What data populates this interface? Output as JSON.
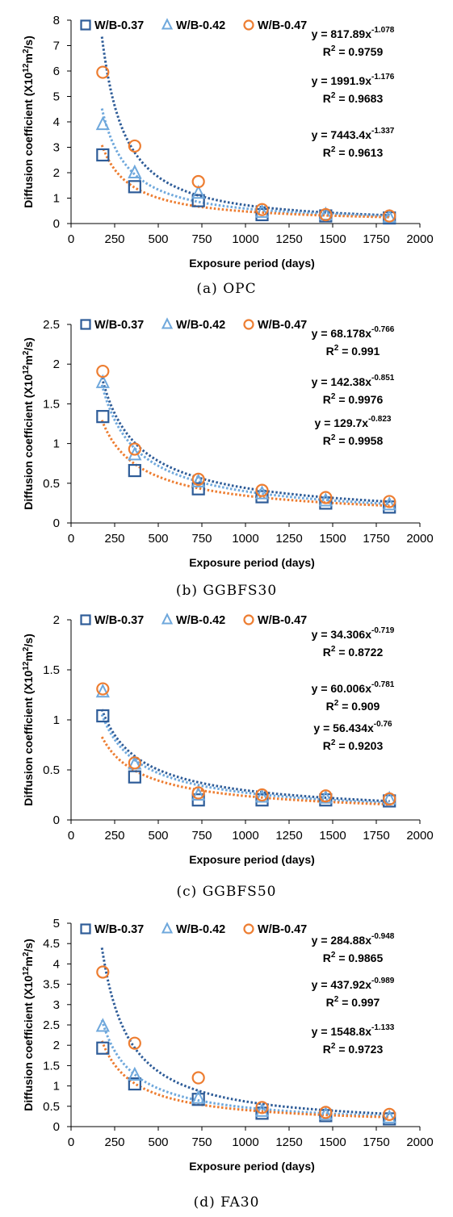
{
  "colors": {
    "series": [
      "#2e5c98",
      "#6fa8dc",
      "#ed7d31"
    ],
    "axis": "#000000"
  },
  "chart_data": [
    {
      "type": "scatter",
      "caption": "(a) OPC",
      "xlabel": "Exposure period (days)",
      "ylabel": "Diffusion coefficient (X10",
      "ylabel_sup": "12",
      "ylabel_mid": "m",
      "ylabel_sup2": "2",
      "ylabel_end": "/s)",
      "xlim": [
        0,
        2000
      ],
      "ylim": [
        0,
        8
      ],
      "xticks": [
        "0",
        "250",
        "500",
        "750",
        "1000",
        "1250",
        "1500",
        "1750",
        "2000"
      ],
      "yticks": [
        "0",
        "1",
        "2",
        "3",
        "4",
        "5",
        "6",
        "7",
        "8"
      ],
      "legend": {
        "placement": "top-left"
      },
      "x": [
        182,
        365,
        730,
        1095,
        1460,
        1825
      ],
      "series": [
        {
          "name": "W/B-0.37",
          "marker": "square",
          "values": [
            2.7,
            1.45,
            0.9,
            0.35,
            0.3,
            0.22
          ],
          "fit": {
            "a": 7443.4,
            "b": -1.337
          }
        },
        {
          "name": "W/B-0.42",
          "marker": "triangle",
          "values": [
            3.9,
            2.0,
            1.2,
            0.45,
            0.35,
            0.25
          ],
          "fit": {
            "a": 1991.9,
            "b": -1.176
          }
        },
        {
          "name": "W/B-0.47",
          "marker": "circle",
          "values": [
            5.95,
            3.05,
            1.65,
            0.55,
            0.35,
            0.3
          ],
          "fit": {
            "a": 817.89,
            "b": -1.078
          }
        }
      ],
      "annotations": [
        {
          "eq_prefix": "y = 817.89x",
          "eq_exp": "-1.078",
          "r2_label": "R",
          "r2_sup": "2",
          "r2_value": " = 0.9759"
        },
        {
          "eq_prefix": "y = 1991.9x",
          "eq_exp": "-1.176",
          "r2_label": "R",
          "r2_sup": "2",
          "r2_value": " = 0.9683"
        },
        {
          "eq_prefix": "y = 7443.4x",
          "eq_exp": "-1.337",
          "r2_label": "R",
          "r2_sup": "2",
          "r2_value": " = 0.9613"
        }
      ]
    },
    {
      "type": "scatter",
      "caption": "(b) GGBFS30",
      "xlabel": "Exposure period (days)",
      "ylabel": "Diffusion coefficient (X10",
      "ylabel_sup": "12",
      "ylabel_mid": "m",
      "ylabel_sup2": "2",
      "ylabel_end": "/s)",
      "xlim": [
        0,
        2000
      ],
      "ylim": [
        0,
        2.5
      ],
      "xticks": [
        "0",
        "250",
        "500",
        "750",
        "1000",
        "1250",
        "1500",
        "1750",
        "2000"
      ],
      "yticks": [
        "0",
        "0.5",
        "1",
        "1.5",
        "2",
        "2.5"
      ],
      "legend": {
        "placement": "top-left"
      },
      "x": [
        182,
        365,
        730,
        1095,
        1460,
        1825
      ],
      "series": [
        {
          "name": "W/B-0.37",
          "marker": "square",
          "values": [
            1.34,
            0.66,
            0.43,
            0.33,
            0.25,
            0.2
          ],
          "fit": {
            "a": 129.7,
            "b": -0.823
          }
        },
        {
          "name": "W/B-0.42",
          "marker": "triangle",
          "values": [
            1.77,
            0.86,
            0.52,
            0.37,
            0.28,
            0.23
          ],
          "fit": {
            "a": 142.38,
            "b": -0.851
          }
        },
        {
          "name": "W/B-0.47",
          "marker": "circle",
          "values": [
            1.91,
            0.93,
            0.55,
            0.41,
            0.32,
            0.27
          ],
          "fit": {
            "a": 68.178,
            "b": -0.766
          }
        }
      ],
      "annotations": [
        {
          "eq_prefix": "y = 68.178x",
          "eq_exp": "-0.766",
          "r2_label": "R",
          "r2_sup": "2",
          "r2_value": " = 0.991"
        },
        {
          "eq_prefix": "y = 142.38x",
          "eq_exp": "-0.851",
          "r2_label": "R",
          "r2_sup": "2",
          "r2_value": " = 0.9976"
        },
        {
          "eq_prefix": "y = 129.7x",
          "eq_exp": "-0.823",
          "r2_label": "R",
          "r2_sup": "2",
          "r2_value": " = 0.9958"
        }
      ]
    },
    {
      "type": "scatter",
      "caption": "(c) GGBFS50",
      "xlabel": "Exposure period (days)",
      "ylabel": "Diffusion coefficient (X10",
      "ylabel_sup": "12",
      "ylabel_mid": "m",
      "ylabel_sup2": "2",
      "ylabel_end": "/s)",
      "xlim": [
        0,
        2000
      ],
      "ylim": [
        0,
        2
      ],
      "xticks": [
        "0",
        "250",
        "500",
        "750",
        "1000",
        "1250",
        "1500",
        "1750",
        "2000"
      ],
      "yticks": [
        "0",
        "0.5",
        "1",
        "1.5",
        "2"
      ],
      "legend": {
        "placement": "top-left"
      },
      "x": [
        182,
        365,
        730,
        1095,
        1460,
        1825
      ],
      "series": [
        {
          "name": "W/B-0.37",
          "marker": "square",
          "values": [
            1.04,
            0.43,
            0.2,
            0.2,
            0.2,
            0.19
          ],
          "fit": {
            "a": 56.434,
            "b": -0.76
          }
        },
        {
          "name": "W/B-0.42",
          "marker": "triangle",
          "values": [
            1.28,
            0.56,
            0.25,
            0.23,
            0.22,
            0.21
          ],
          "fit": {
            "a": 60.006,
            "b": -0.781
          }
        },
        {
          "name": "W/B-0.47",
          "marker": "circle",
          "values": [
            1.31,
            0.57,
            0.27,
            0.25,
            0.24,
            0.21
          ],
          "fit": {
            "a": 34.306,
            "b": -0.719
          }
        }
      ],
      "annotations": [
        {
          "eq_prefix": "y = 34.306x",
          "eq_exp": "-0.719",
          "r2_label": "R",
          "r2_sup": "2",
          "r2_value": " = 0.8722"
        },
        {
          "eq_prefix": "y = 60.006x",
          "eq_exp": "-0.781",
          "r2_label": "R",
          "r2_sup": "2",
          "r2_value": " = 0.909"
        },
        {
          "eq_prefix": "y = 56.434x",
          "eq_exp": "-0.76",
          "r2_label": "R",
          "r2_sup": "2",
          "r2_value": " = 0.9203"
        }
      ]
    },
    {
      "type": "scatter",
      "caption": "(d) FA30",
      "xlabel": "Exposure period (days)",
      "ylabel": "Diffusion coefficient (X10",
      "ylabel_sup": "12",
      "ylabel_mid": "m",
      "ylabel_sup2": "2",
      "ylabel_end": "/s)",
      "xlim": [
        0,
        2000
      ],
      "ylim": [
        0,
        5
      ],
      "xticks": [
        "0",
        "250",
        "500",
        "750",
        "1000",
        "1250",
        "1500",
        "1750",
        "2000"
      ],
      "yticks": [
        "0",
        "0.5",
        "1",
        "1.5",
        "2",
        "2.5",
        "3",
        "3.5",
        "4",
        "4.5",
        "5"
      ],
      "legend": {
        "placement": "top-left"
      },
      "x": [
        182,
        365,
        730,
        1095,
        1460,
        1825
      ],
      "series": [
        {
          "name": "W/B-0.37",
          "marker": "square",
          "values": [
            1.93,
            1.05,
            0.67,
            0.33,
            0.27,
            0.19
          ],
          "fit": {
            "a": 1548.8,
            "b": -1.133
          }
        },
        {
          "name": "W/B-0.42",
          "marker": "triangle",
          "values": [
            2.47,
            1.27,
            0.7,
            0.38,
            0.3,
            0.22
          ],
          "fit": {
            "a": 437.92,
            "b": -0.989
          }
        },
        {
          "name": "W/B-0.47",
          "marker": "circle",
          "values": [
            3.8,
            2.05,
            1.2,
            0.47,
            0.35,
            0.3
          ],
          "fit": {
            "a": 284.88,
            "b": -0.948
          }
        }
      ],
      "annotations": [
        {
          "eq_prefix": "y = 284.88x",
          "eq_exp": "-0.948",
          "r2_label": "R",
          "r2_sup": "2",
          "r2_value": " = 0.9865"
        },
        {
          "eq_prefix": "y = 437.92x",
          "eq_exp": "-0.989",
          "r2_label": "R",
          "r2_sup": "2",
          "r2_value": " = 0.997"
        },
        {
          "eq_prefix": "y = 1548.8x",
          "eq_exp": "-1.133",
          "r2_label": "R",
          "r2_sup": "2",
          "r2_value": " = 0.9723"
        }
      ]
    }
  ]
}
